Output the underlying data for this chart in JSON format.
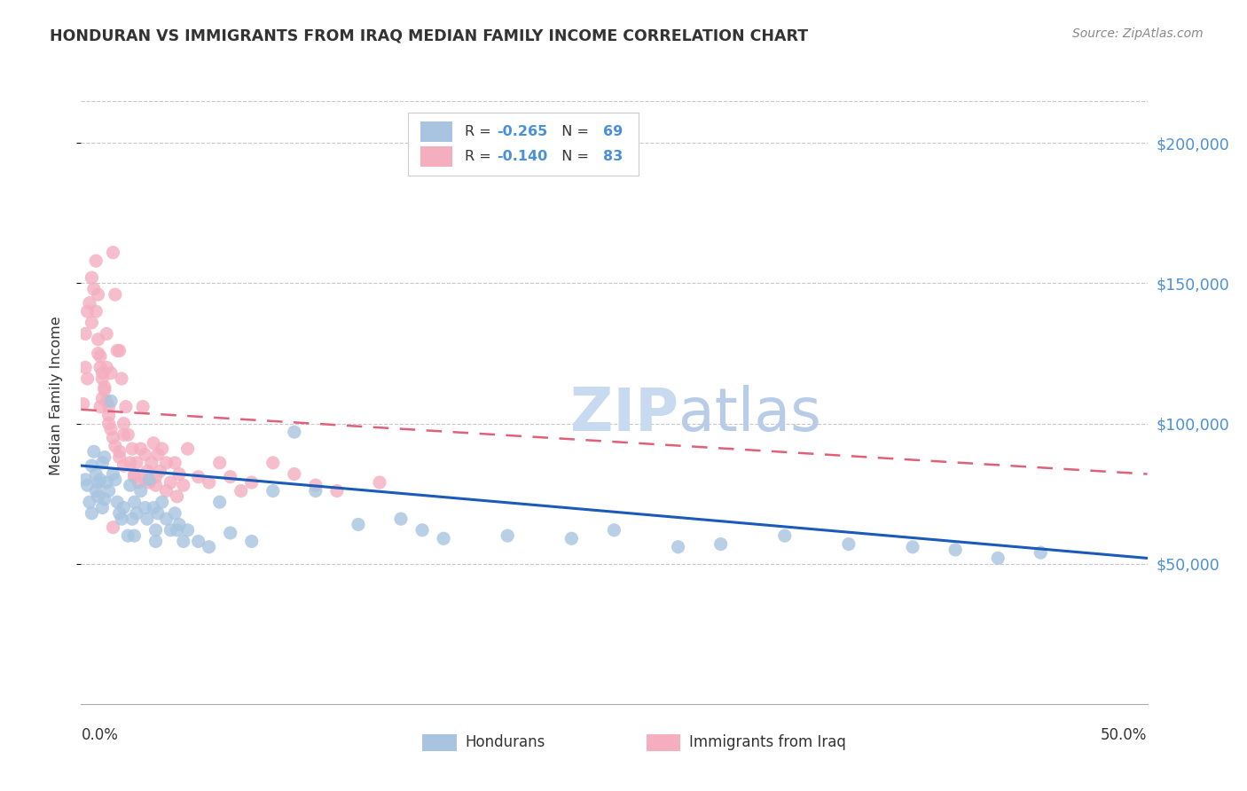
{
  "title": "HONDURAN VS IMMIGRANTS FROM IRAQ MEDIAN FAMILY INCOME CORRELATION CHART",
  "source": "Source: ZipAtlas.com",
  "ylabel": "Median Family Income",
  "x_min": 0.0,
  "x_max": 0.5,
  "y_min": 0,
  "y_max": 220000,
  "y_ticks": [
    50000,
    100000,
    150000,
    200000
  ],
  "y_tick_labels": [
    "$50,000",
    "$100,000",
    "$150,000",
    "$200,000"
  ],
  "background_color": "#ffffff",
  "grid_color": "#c8c8c8",
  "hondurans_color": "#a8c4e0",
  "iraq_color": "#f4aec0",
  "hondurans_line_color": "#1a5ab8",
  "iraq_line_color": "#e0607a",
  "watermark_color": "#dce8f5",
  "tick_label_color": "#4a90d9",
  "text_color": "#333333",
  "source_color": "#888888",
  "legend_R_color": "#333333",
  "legend_val_color": "#4a90d9",
  "hondurans_label": "Hondurans",
  "iraq_label": "Immigrants from Iraq",
  "hon_x": [
    0.002,
    0.003,
    0.004,
    0.005,
    0.005,
    0.006,
    0.007,
    0.007,
    0.008,
    0.008,
    0.009,
    0.01,
    0.01,
    0.011,
    0.011,
    0.012,
    0.013,
    0.014,
    0.015,
    0.016,
    0.017,
    0.018,
    0.019,
    0.02,
    0.022,
    0.023,
    0.024,
    0.025,
    0.026,
    0.028,
    0.03,
    0.031,
    0.032,
    0.034,
    0.035,
    0.036,
    0.038,
    0.04,
    0.042,
    0.044,
    0.046,
    0.048,
    0.05,
    0.055,
    0.06,
    0.065,
    0.07,
    0.08,
    0.09,
    0.1,
    0.11,
    0.13,
    0.15,
    0.17,
    0.2,
    0.23,
    0.25,
    0.28,
    0.3,
    0.33,
    0.36,
    0.39,
    0.41,
    0.43,
    0.45,
    0.16,
    0.025,
    0.035,
    0.045
  ],
  "hon_y": [
    80000,
    78000,
    72000,
    85000,
    68000,
    90000,
    76000,
    82000,
    74000,
    79000,
    80000,
    86000,
    70000,
    88000,
    73000,
    79000,
    76000,
    108000,
    82000,
    80000,
    72000,
    68000,
    66000,
    70000,
    60000,
    78000,
    66000,
    72000,
    68000,
    76000,
    70000,
    66000,
    80000,
    70000,
    62000,
    68000,
    72000,
    66000,
    62000,
    68000,
    64000,
    58000,
    62000,
    58000,
    56000,
    72000,
    61000,
    58000,
    76000,
    97000,
    76000,
    64000,
    66000,
    59000,
    60000,
    59000,
    62000,
    56000,
    57000,
    60000,
    57000,
    56000,
    55000,
    52000,
    54000,
    62000,
    60000,
    58000,
    62000
  ],
  "iraq_x": [
    0.001,
    0.002,
    0.002,
    0.003,
    0.003,
    0.004,
    0.005,
    0.005,
    0.006,
    0.007,
    0.007,
    0.008,
    0.008,
    0.009,
    0.009,
    0.01,
    0.01,
    0.011,
    0.012,
    0.012,
    0.013,
    0.013,
    0.014,
    0.015,
    0.016,
    0.017,
    0.018,
    0.019,
    0.02,
    0.021,
    0.022,
    0.023,
    0.024,
    0.025,
    0.026,
    0.027,
    0.028,
    0.029,
    0.03,
    0.031,
    0.032,
    0.033,
    0.034,
    0.035,
    0.036,
    0.037,
    0.038,
    0.04,
    0.042,
    0.044,
    0.046,
    0.048,
    0.05,
    0.055,
    0.06,
    0.065,
    0.07,
    0.075,
    0.08,
    0.09,
    0.1,
    0.11,
    0.12,
    0.14,
    0.008,
    0.009,
    0.01,
    0.011,
    0.012,
    0.013,
    0.014,
    0.015,
    0.016,
    0.018,
    0.02,
    0.025,
    0.03,
    0.035,
    0.04,
    0.045,
    0.02,
    0.018,
    0.015
  ],
  "iraq_y": [
    107000,
    120000,
    132000,
    140000,
    116000,
    143000,
    136000,
    152000,
    148000,
    140000,
    158000,
    146000,
    125000,
    106000,
    120000,
    116000,
    109000,
    113000,
    132000,
    120000,
    106000,
    100000,
    118000,
    161000,
    146000,
    126000,
    90000,
    116000,
    100000,
    106000,
    96000,
    86000,
    91000,
    81000,
    86000,
    79000,
    91000,
    106000,
    89000,
    83000,
    79000,
    86000,
    93000,
    81000,
    89000,
    83000,
    91000,
    86000,
    79000,
    86000,
    82000,
    78000,
    91000,
    81000,
    79000,
    86000,
    81000,
    76000,
    79000,
    86000,
    82000,
    78000,
    76000,
    79000,
    130000,
    124000,
    118000,
    112000,
    108000,
    103000,
    98000,
    95000,
    92000,
    88000,
    85000,
    82000,
    80000,
    78000,
    76000,
    74000,
    96000,
    126000,
    63000
  ]
}
